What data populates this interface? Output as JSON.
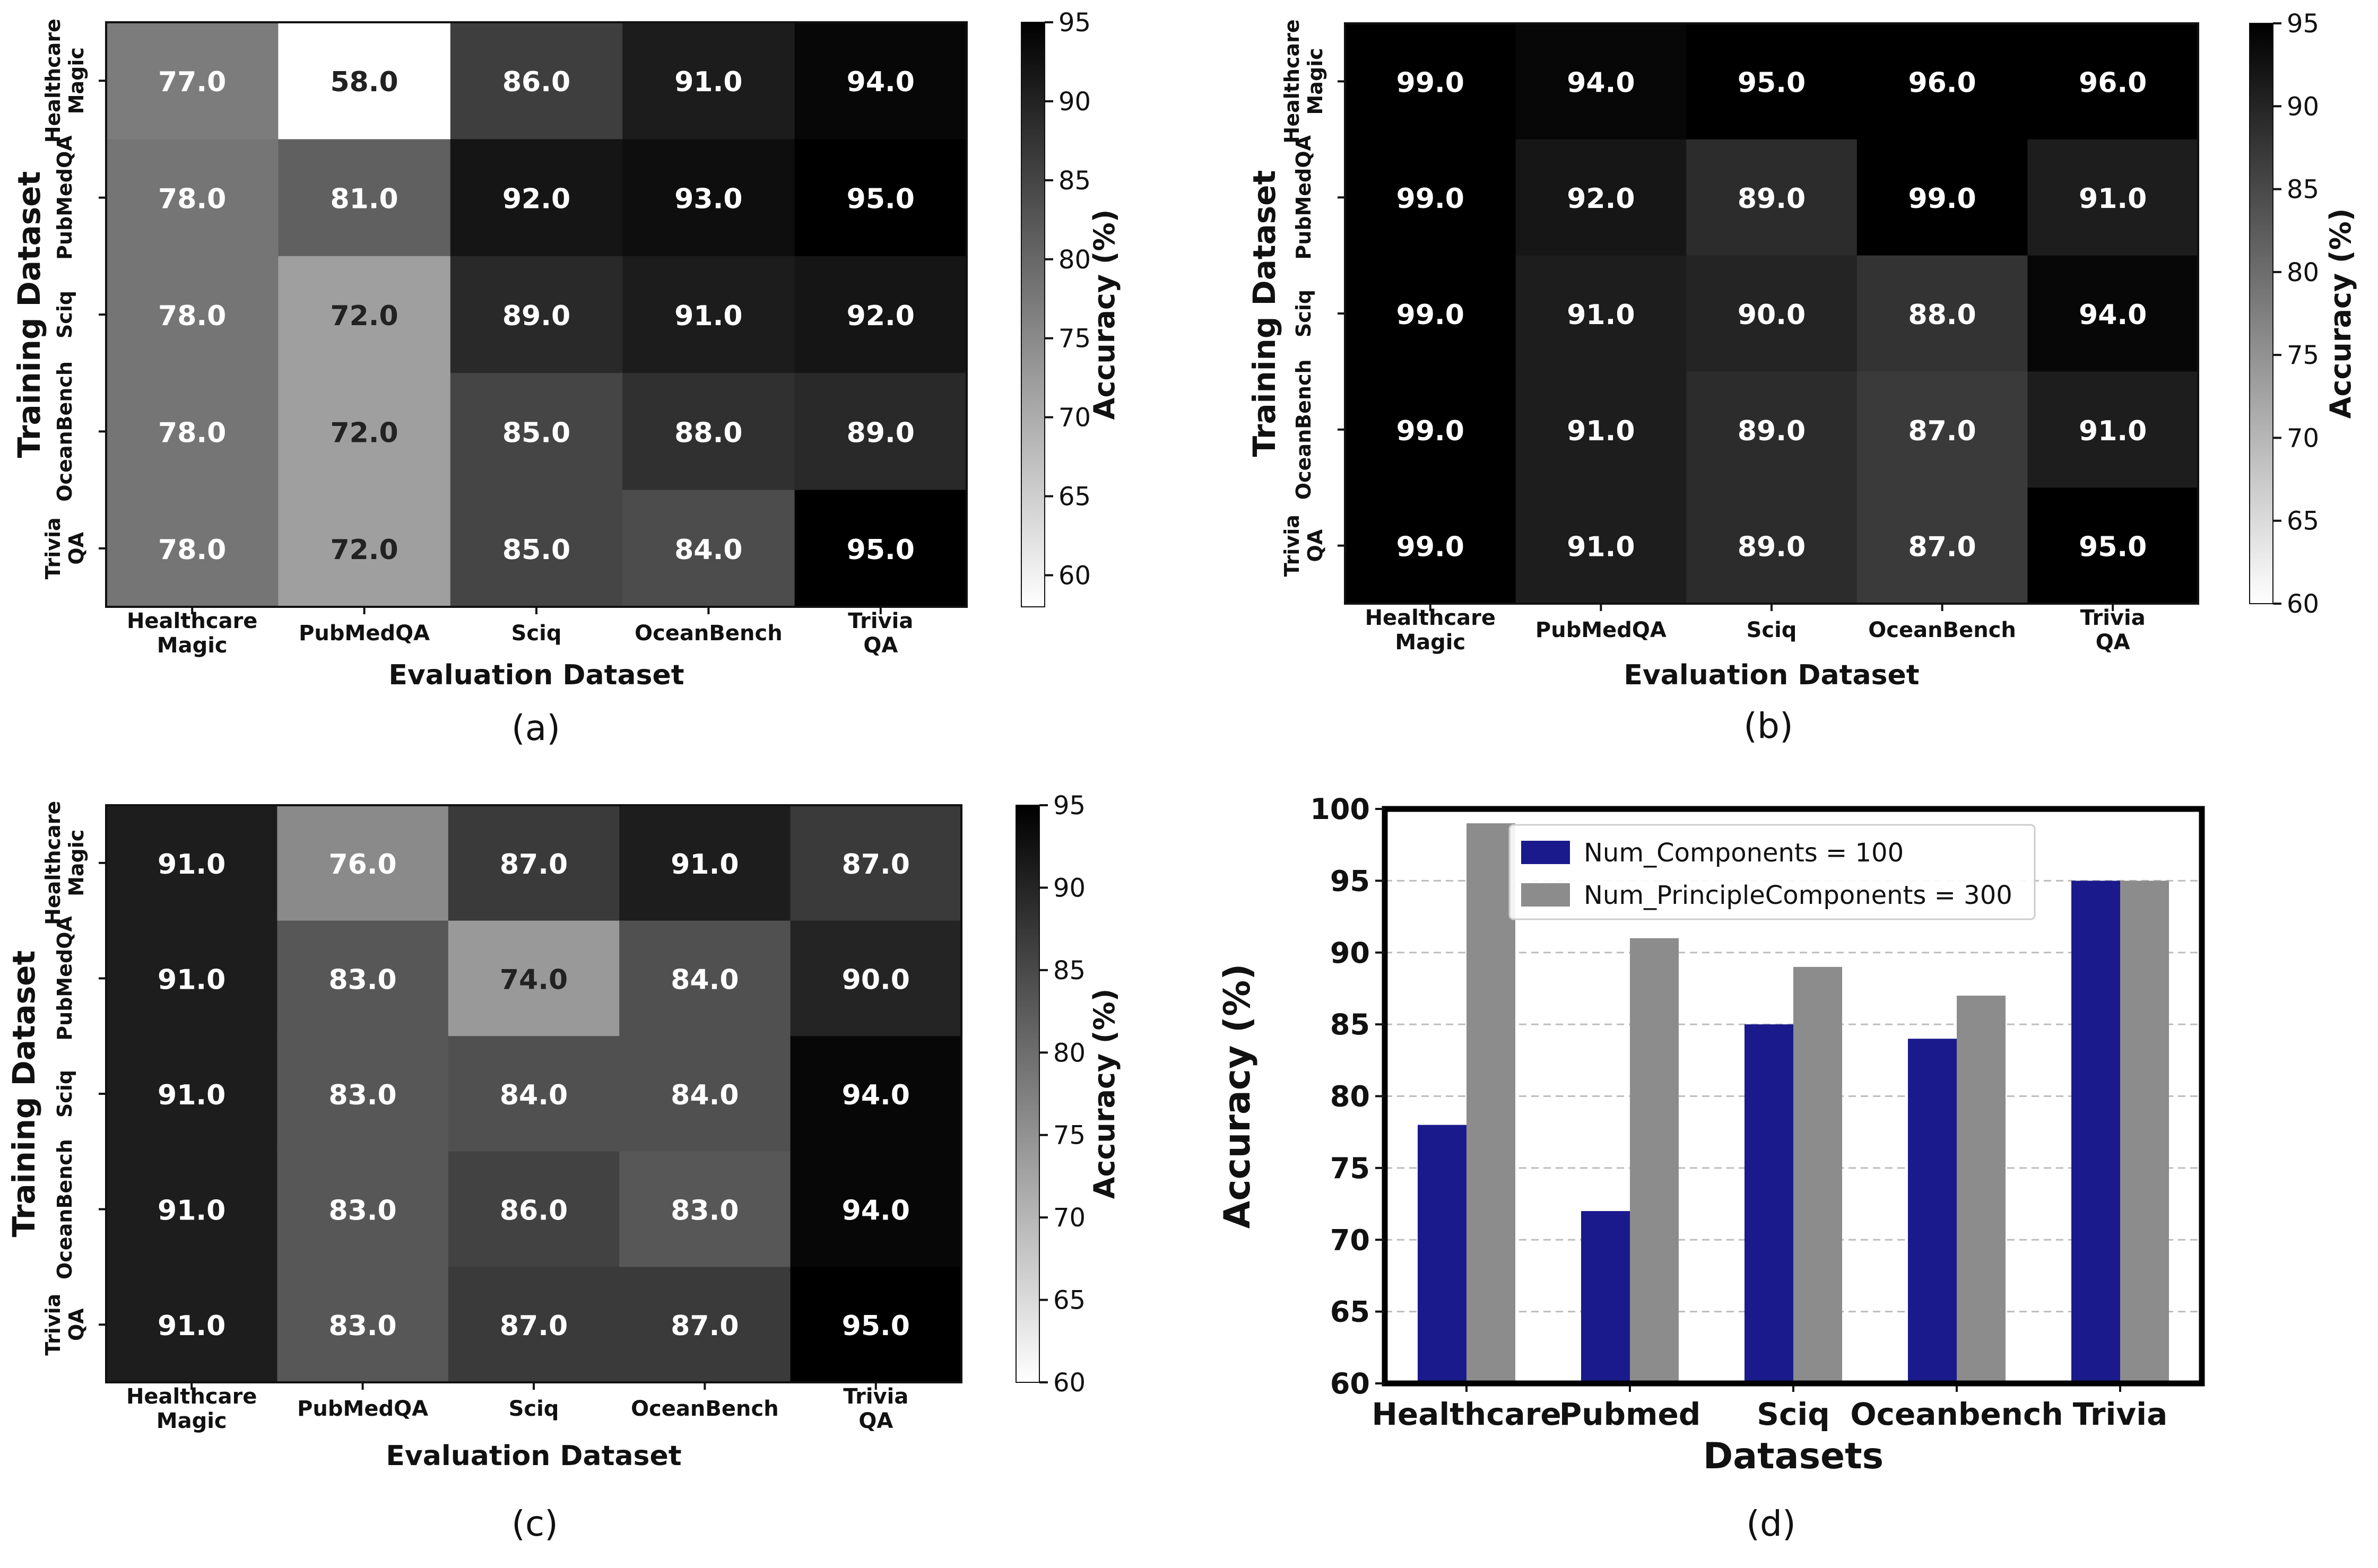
{
  "chart_data": [
    {
      "type": "heatmap",
      "panel": "(a)",
      "xlabel": "Evaluation Dataset",
      "ylabel": "Training Dataset",
      "colorbar_label": "Accuracy (%)",
      "colorbar_range": [
        58,
        95
      ],
      "colorbar_ticks": [
        "60",
        "65",
        "70",
        "75",
        "80",
        "85",
        "90",
        "95"
      ],
      "colorbar_tick_values": [
        60,
        65,
        70,
        75,
        80,
        85,
        90,
        95
      ],
      "x_categories": [
        [
          "Healthcare",
          "Magic"
        ],
        [
          "PubMedQA"
        ],
        [
          "Sciq"
        ],
        [
          "OceanBench"
        ],
        [
          "Trivia",
          "QA"
        ]
      ],
      "y_categories": [
        [
          "Healthcare",
          "Magic"
        ],
        [
          "PubMedQA"
        ],
        [
          "Sciq"
        ],
        [
          "OceanBench"
        ],
        [
          "Trivia",
          "QA"
        ]
      ],
      "values": [
        [
          77.0,
          58.0,
          86.0,
          91.0,
          94.0
        ],
        [
          78.0,
          81.0,
          92.0,
          93.0,
          95.0
        ],
        [
          78.0,
          72.0,
          89.0,
          91.0,
          92.0
        ],
        [
          78.0,
          72.0,
          85.0,
          88.0,
          89.0
        ],
        [
          78.0,
          72.0,
          85.0,
          84.0,
          95.0
        ]
      ],
      "value_labels": [
        [
          "77.0",
          "58.0",
          "86.0",
          "91.0",
          "94.0"
        ],
        [
          "78.0",
          "81.0",
          "92.0",
          "93.0",
          "95.0"
        ],
        [
          "78.0",
          "72.0",
          "89.0",
          "91.0",
          "92.0"
        ],
        [
          "78.0",
          "72.0",
          "85.0",
          "88.0",
          "89.0"
        ],
        [
          "78.0",
          "72.0",
          "85.0",
          "84.0",
          "95.0"
        ]
      ]
    },
    {
      "type": "heatmap",
      "panel": "(b)",
      "xlabel": "Evaluation Dataset",
      "ylabel": "Training Dataset",
      "colorbar_label": "Accuracy (%)",
      "colorbar_range": [
        60,
        95
      ],
      "colorbar_ticks": [
        "60",
        "65",
        "70",
        "75",
        "80",
        "85",
        "90",
        "95"
      ],
      "colorbar_tick_values": [
        60,
        65,
        70,
        75,
        80,
        85,
        90,
        95
      ],
      "x_categories": [
        [
          "Healthcare",
          "Magic"
        ],
        [
          "PubMedQA"
        ],
        [
          "Sciq"
        ],
        [
          "OceanBench"
        ],
        [
          "Trivia",
          "QA"
        ]
      ],
      "y_categories": [
        [
          "Healthcare",
          "Magic"
        ],
        [
          "PubMedQA"
        ],
        [
          "Sciq"
        ],
        [
          "OceanBench"
        ],
        [
          "Trivia",
          "QA"
        ]
      ],
      "values": [
        [
          99.0,
          94.0,
          95.0,
          96.0,
          96.0
        ],
        [
          99.0,
          92.0,
          89.0,
          99.0,
          91.0
        ],
        [
          99.0,
          91.0,
          90.0,
          88.0,
          94.0
        ],
        [
          99.0,
          91.0,
          89.0,
          87.0,
          91.0
        ],
        [
          99.0,
          91.0,
          89.0,
          87.0,
          95.0
        ]
      ],
      "value_labels": [
        [
          "99.0",
          "94.0",
          "95.0",
          "96.0",
          "96.0"
        ],
        [
          "99.0",
          "92.0",
          "89.0",
          "99.0",
          "91.0"
        ],
        [
          "99.0",
          "91.0",
          "90.0",
          "88.0",
          "94.0"
        ],
        [
          "99.0",
          "91.0",
          "89.0",
          "87.0",
          "91.0"
        ],
        [
          "99.0",
          "91.0",
          "89.0",
          "87.0",
          "95.0"
        ]
      ]
    },
    {
      "type": "heatmap",
      "panel": "(c)",
      "xlabel": "Evaluation Dataset",
      "ylabel": "Training Dataset",
      "colorbar_label": "Accuracy (%)",
      "colorbar_range": [
        60,
        95
      ],
      "colorbar_ticks": [
        "60",
        "65",
        "70",
        "75",
        "80",
        "85",
        "90",
        "95"
      ],
      "colorbar_tick_values": [
        60,
        65,
        70,
        75,
        80,
        85,
        90,
        95
      ],
      "x_categories": [
        [
          "Healthcare",
          "Magic"
        ],
        [
          "PubMedQA"
        ],
        [
          "Sciq"
        ],
        [
          "OceanBench"
        ],
        [
          "Trivia",
          "QA"
        ]
      ],
      "y_categories": [
        [
          "Healthcare",
          "Magic"
        ],
        [
          "PubMedQA"
        ],
        [
          "Sciq"
        ],
        [
          "OceanBench"
        ],
        [
          "Trivia",
          "QA"
        ]
      ],
      "values": [
        [
          91.0,
          76.0,
          87.0,
          91.0,
          87.0
        ],
        [
          91.0,
          83.0,
          74.0,
          84.0,
          90.0
        ],
        [
          91.0,
          83.0,
          84.0,
          84.0,
          94.0
        ],
        [
          91.0,
          83.0,
          86.0,
          83.0,
          94.0
        ],
        [
          91.0,
          83.0,
          87.0,
          87.0,
          95.0
        ]
      ],
      "value_labels": [
        [
          "91.0",
          "76.0",
          "87.0",
          "91.0",
          "87.0"
        ],
        [
          "91.0",
          "83.0",
          "74.0",
          "84.0",
          "90.0"
        ],
        [
          "91.0",
          "83.0",
          "84.0",
          "84.0",
          "94.0"
        ],
        [
          "91.0",
          "83.0",
          "86.0",
          "83.0",
          "94.0"
        ],
        [
          "91.0",
          "83.0",
          "87.0",
          "87.0",
          "95.0"
        ]
      ]
    },
    {
      "type": "bar",
      "panel": "(d)",
      "xlabel": "Datasets",
      "ylabel": "Accuracy (%)",
      "categories": [
        "Healthcare",
        "Pubmed",
        "Sciq",
        "Oceanbench",
        "Trivia"
      ],
      "ylim": [
        60,
        100
      ],
      "yticks": [
        "60",
        "65",
        "70",
        "75",
        "80",
        "85",
        "90",
        "95",
        "100"
      ],
      "ytick_values": [
        60,
        65,
        70,
        75,
        80,
        85,
        90,
        95,
        100
      ],
      "grid": "horizontal dashed",
      "legend_position": "top-center",
      "series": [
        {
          "name": "Num_Components = 100",
          "color": "#1a1a8c",
          "values": [
            78,
            72,
            85,
            84,
            95
          ]
        },
        {
          "name": "Num_PrincipleComponents = 300",
          "color": "#8c8c8c",
          "values": [
            99,
            91,
            89,
            87,
            95
          ]
        }
      ]
    }
  ]
}
